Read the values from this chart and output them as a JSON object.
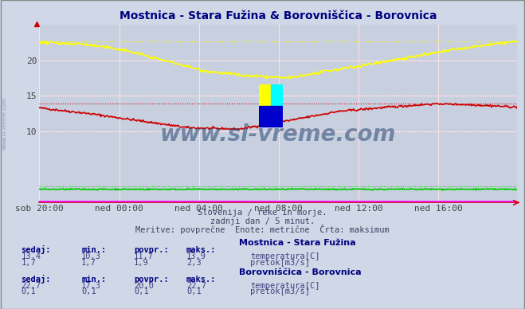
{
  "title": "Mostnica - Stara Fužina & Borovniščica - Borovnica",
  "title_color": "#000080",
  "bg_color": "#d0d8e8",
  "plot_bg_color": "#c8d0e0",
  "grid_color": "#ffffff",
  "xlabel_color": "#505050",
  "subtitle1": "Slovenija / reke in morje.",
  "subtitle2": "zadnji dan / 5 minut.",
  "subtitle3": "Meritve: povprečne  Enote: metrične  Črta: maksimum",
  "xticklabels": [
    "sob 20:00",
    "ned 00:00",
    "ned 04:00",
    "ned 08:00",
    "ned 12:00",
    "ned 16:00"
  ],
  "xtick_positions": [
    0,
    96,
    192,
    288,
    384,
    480
  ],
  "total_points": 576,
  "ylim": [
    0,
    25
  ],
  "yticks": [
    10,
    15,
    20
  ],
  "watermark": "www.si-vreme.com",
  "watermark_color": "#1a3a6a",
  "legend_title1": "Mostnica - Stara Fužina",
  "legend_title2": "Borovniščica - Borovnica",
  "legend_color": "#000080",
  "series": {
    "temp1_color": "#cc0000",
    "temp1_max": 13.9,
    "temp1_min": 10.3,
    "temp1_avg": 11.7,
    "temp1_cur": 13.4,
    "flow1_color": "#00cc00",
    "flow1_max": 2.3,
    "flow1_min": 1.7,
    "flow1_avg": 1.9,
    "flow1_cur": 1.7,
    "temp2_color": "#ffff00",
    "temp2_max": 22.7,
    "temp2_min": 17.3,
    "temp2_avg": 20.0,
    "temp2_cur": 22.7,
    "flow2_color": "#ff00ff",
    "flow2_max": 0.1,
    "flow2_min": 0.1,
    "flow2_avg": 0.1,
    "flow2_cur": 0.1
  },
  "stat_label_color": "#000080",
  "stat_value_color": "#000060",
  "stat_headers": [
    "sedaj:",
    "min.:",
    "povpr.:",
    "maks.:"
  ],
  "stat1_vals": [
    "13,4",
    "10,3",
    "11,7",
    "13,9"
  ],
  "stat1_flow_vals": [
    "1,7",
    "1,7",
    "1,9",
    "2,3"
  ],
  "stat2_vals": [
    "22,7",
    "17,3",
    "20,0",
    "22,7"
  ],
  "stat2_flow_vals": [
    "0,1",
    "0,1",
    "0,1",
    "0,1"
  ]
}
